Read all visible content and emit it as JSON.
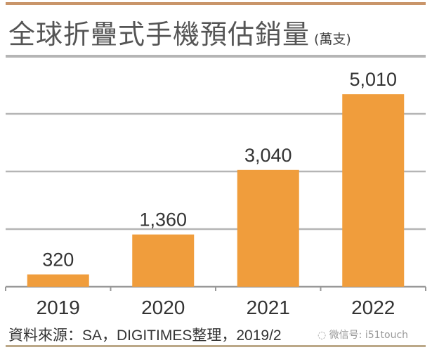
{
  "chart_data": {
    "type": "bar",
    "title": "全球折疊式手機預估銷量",
    "unit": "(萬支)",
    "categories": [
      "2019",
      "2020",
      "2021",
      "2022"
    ],
    "values": [
      320,
      1360,
      3040,
      5010
    ],
    "value_labels": [
      "320",
      "1,360",
      "3,040",
      "5,010"
    ],
    "ylim": [
      0,
      6000
    ],
    "gridlines": [
      1500,
      3000,
      4500,
      6000
    ],
    "grid": true,
    "bar_color": "#f09d3c",
    "xlabel": "",
    "ylabel": ""
  },
  "source": "資料來源：SA，DIGITIMES整理，2019/2",
  "watermark": "微信号: i51touch"
}
